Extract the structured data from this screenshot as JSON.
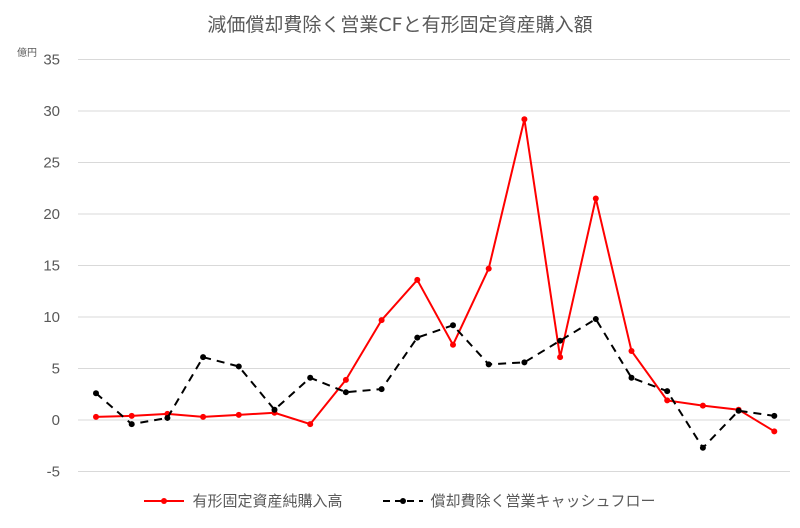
{
  "chart_data": {
    "type": "line",
    "title": "減価償却費除く営業CFと有形固定資産購入額",
    "ylabel": "億円",
    "xlabel": "",
    "ylim": [
      -5,
      35
    ],
    "yticks": [
      35,
      30,
      25,
      20,
      15,
      10,
      5,
      0,
      -5
    ],
    "grid": true,
    "legend_position": "bottom",
    "x": [
      1,
      2,
      3,
      4,
      5,
      6,
      7,
      8,
      9,
      10,
      11,
      12,
      13,
      14,
      15,
      16,
      17,
      18,
      19,
      20
    ],
    "series": [
      {
        "name": "有形固定資産純購入高",
        "color": "#ff0000",
        "style": "solid",
        "values": [
          0.3,
          0.4,
          0.6,
          0.3,
          0.5,
          0.7,
          -0.4,
          3.9,
          9.7,
          13.6,
          7.3,
          14.7,
          29.2,
          6.1,
          21.5,
          6.7,
          1.9,
          1.4,
          1.0,
          -1.1
        ]
      },
      {
        "name": "償却費除く営業キャッシュフロー",
        "color": "#000000",
        "style": "dashed",
        "values": [
          2.6,
          -0.4,
          0.2,
          6.1,
          5.2,
          1.0,
          4.1,
          2.7,
          3.0,
          8.0,
          9.2,
          5.4,
          5.6,
          7.7,
          9.8,
          4.1,
          2.8,
          -2.7,
          0.9,
          0.4
        ]
      }
    ]
  }
}
